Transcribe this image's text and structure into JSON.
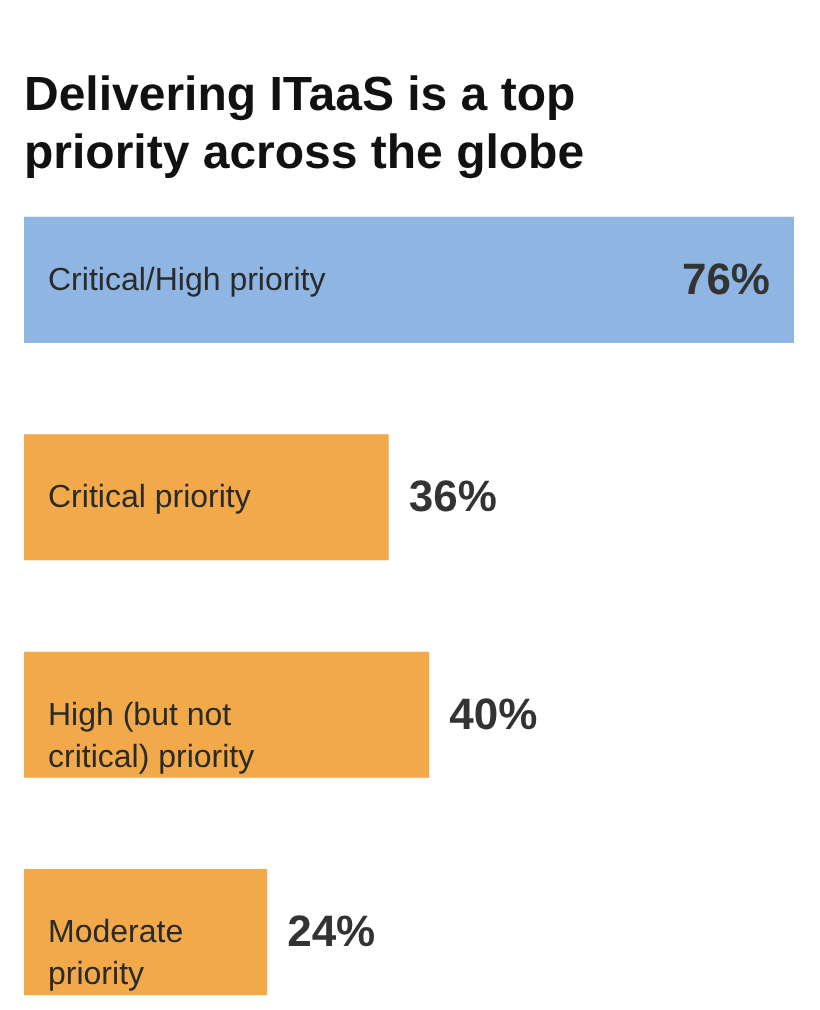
{
  "chart_data": {
    "type": "bar",
    "orientation": "horizontal",
    "title": "Delivering ITaaS is a top priority across the globe",
    "categories": [
      "Critical/High priority",
      "Critical priority",
      "High (but not critical) priority",
      "Moderate priority"
    ],
    "values": [
      76,
      36,
      40,
      24
    ],
    "colors": [
      "#8fb6e3",
      "#f2a94a",
      "#f2a94a",
      "#f2a94a"
    ],
    "value_labels": [
      "76%",
      "36%",
      "40%",
      "24%"
    ]
  }
}
